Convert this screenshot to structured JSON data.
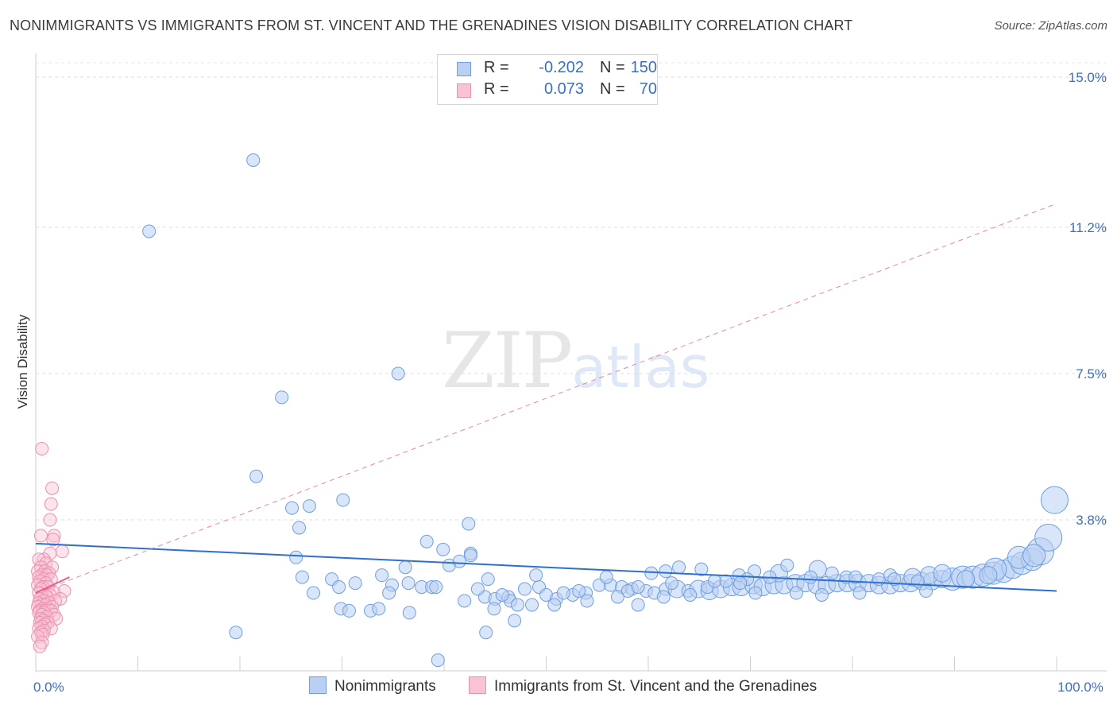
{
  "title": "NONIMMIGRANTS VS IMMIGRANTS FROM ST. VINCENT AND THE GRENADINES VISION DISABILITY CORRELATION CHART",
  "source": "Source: ZipAtlas.com",
  "watermark": {
    "zip": "ZIP",
    "atlas": "atlas"
  },
  "colors": {
    "blue": "#6f9fe0",
    "blue_fill": "#b9d0f2",
    "blue_line": "#2f6fcf",
    "pink": "#ee8fb0",
    "pink_fill": "#f7c3d5",
    "pink_line": "#e35d8a",
    "tick": "#3b6fc4"
  },
  "legend": {
    "rows": [
      {
        "r_label": "R =",
        "r_value": "-0.202",
        "n_label": "N =",
        "n_value": "150"
      },
      {
        "r_label": "R =",
        "r_value": "0.073",
        "n_label": "N =",
        "n_value": "70"
      }
    ]
  },
  "bottom_legend": {
    "nonimmigrants": "Nonimmigrants",
    "immigrants": "Immigrants from St. Vincent and the Grenadines"
  },
  "chart_data": {
    "type": "scatter",
    "xlabel": "",
    "ylabel": "Vision Disability",
    "xlim": [
      0,
      100
    ],
    "ylim": [
      0,
      15
    ],
    "x_tick_labels": [
      {
        "value": 0,
        "label": "0.0%"
      },
      {
        "value": 100,
        "label": "100.0%"
      }
    ],
    "y_tick_labels": [
      {
        "value": 3.8,
        "label": "3.8%"
      },
      {
        "value": 7.5,
        "label": "7.5%"
      },
      {
        "value": 11.2,
        "label": "11.2%"
      },
      {
        "value": 15.0,
        "label": "15.0%"
      }
    ],
    "x_minor_ticks": [
      0,
      10,
      20,
      30,
      40,
      50,
      60,
      70,
      80,
      90,
      100
    ],
    "grid": "horizontal-dashed",
    "series": [
      {
        "name": "Nonimmigrants",
        "trend": {
          "x": [
            0,
            100
          ],
          "y": [
            3.2,
            2.0
          ]
        },
        "points": [
          [
            21.3,
            12.9,
            4
          ],
          [
            11.1,
            11.1,
            4
          ],
          [
            35.5,
            7.5,
            4
          ],
          [
            24.1,
            6.9,
            4
          ],
          [
            21.6,
            4.9,
            4
          ],
          [
            30.1,
            4.3,
            4
          ],
          [
            25.1,
            4.1,
            4
          ],
          [
            26.8,
            4.15,
            4
          ],
          [
            42.4,
            3.7,
            4
          ],
          [
            25.8,
            3.6,
            4
          ],
          [
            38.3,
            3.25,
            4
          ],
          [
            39.9,
            3.05,
            4
          ],
          [
            42.6,
            2.95,
            4
          ],
          [
            25.5,
            2.85,
            4
          ],
          [
            36.2,
            2.6,
            4
          ],
          [
            33.9,
            2.4,
            4
          ],
          [
            44.3,
            2.3,
            4
          ],
          [
            26.1,
            2.35,
            4
          ],
          [
            29.0,
            2.3,
            4
          ],
          [
            31.3,
            2.2,
            4
          ],
          [
            36.5,
            2.2,
            4
          ],
          [
            34.9,
            2.15,
            4
          ],
          [
            37.8,
            2.1,
            4
          ],
          [
            38.8,
            2.1,
            4
          ],
          [
            39.2,
            2.1,
            4
          ],
          [
            27.2,
            1.95,
            4
          ],
          [
            29.7,
            2.1,
            4
          ],
          [
            34.6,
            1.95,
            4
          ],
          [
            44.0,
            1.85,
            4
          ],
          [
            45.0,
            1.8,
            4
          ],
          [
            46.3,
            1.85,
            4
          ],
          [
            47.9,
            2.05,
            4
          ],
          [
            49.3,
            2.1,
            4
          ],
          [
            50.0,
            1.9,
            4
          ],
          [
            51.0,
            1.8,
            4
          ],
          [
            52.6,
            1.9,
            4
          ],
          [
            53.9,
            1.95,
            4
          ],
          [
            55.2,
            2.15,
            4
          ],
          [
            56.3,
            2.15,
            4
          ],
          [
            57.4,
            2.1,
            4
          ],
          [
            58.4,
            2.05,
            4
          ],
          [
            59.8,
            2.0,
            4
          ],
          [
            60.6,
            1.95,
            4
          ],
          [
            61.7,
            2.05,
            4
          ],
          [
            62.8,
            2.05,
            5
          ],
          [
            63.9,
            2.0,
            4
          ],
          [
            64.9,
            2.05,
            5
          ],
          [
            66.0,
            2.0,
            5
          ],
          [
            67.1,
            2.05,
            5
          ],
          [
            68.2,
            2.1,
            5
          ],
          [
            69.1,
            2.1,
            5
          ],
          [
            70.3,
            2.15,
            5
          ],
          [
            71.2,
            2.1,
            5
          ],
          [
            72.3,
            2.15,
            5
          ],
          [
            73.3,
            2.15,
            5
          ],
          [
            74.4,
            2.2,
            5
          ],
          [
            75.4,
            2.2,
            5
          ],
          [
            76.5,
            2.15,
            5
          ],
          [
            77.5,
            2.15,
            5
          ],
          [
            78.5,
            2.2,
            5
          ],
          [
            79.5,
            2.2,
            5
          ],
          [
            80.5,
            2.2,
            5
          ],
          [
            81.6,
            2.2,
            5
          ],
          [
            82.6,
            2.15,
            5
          ],
          [
            83.7,
            2.15,
            5
          ],
          [
            84.7,
            2.2,
            5
          ],
          [
            85.7,
            2.2,
            5
          ],
          [
            86.8,
            2.25,
            5
          ],
          [
            87.8,
            2.25,
            5
          ],
          [
            88.8,
            2.3,
            5
          ],
          [
            89.8,
            2.3,
            6
          ],
          [
            90.8,
            2.35,
            6
          ],
          [
            91.8,
            2.35,
            6
          ],
          [
            92.8,
            2.4,
            6
          ],
          [
            93.8,
            2.45,
            6
          ],
          [
            94.8,
            2.5,
            6
          ],
          [
            95.7,
            2.6,
            6
          ],
          [
            96.6,
            2.7,
            6
          ],
          [
            97.6,
            2.8,
            6
          ],
          [
            98.4,
            3.0,
            7
          ],
          [
            99.2,
            3.35,
            7
          ],
          [
            99.8,
            4.3,
            7
          ],
          [
            49.0,
            2.4,
            4
          ],
          [
            55.9,
            2.35,
            4
          ],
          [
            60.3,
            2.45,
            4
          ],
          [
            61.7,
            2.5,
            4
          ],
          [
            63.0,
            2.6,
            4
          ],
          [
            65.2,
            2.55,
            4
          ],
          [
            68.9,
            2.4,
            4
          ],
          [
            70.4,
            2.5,
            4
          ],
          [
            72.8,
            2.45,
            5
          ],
          [
            73.6,
            2.65,
            4
          ],
          [
            76.6,
            2.55,
            5
          ],
          [
            78.0,
            2.45,
            4
          ],
          [
            82.6,
            2.3,
            4
          ],
          [
            85.9,
            2.35,
            5
          ],
          [
            87.5,
            2.4,
            5
          ],
          [
            40.5,
            2.65,
            4
          ],
          [
            41.5,
            2.75,
            4
          ],
          [
            42.6,
            2.9,
            4
          ],
          [
            51.7,
            1.95,
            4
          ],
          [
            53.2,
            2.0,
            4
          ],
          [
            57.0,
            1.85,
            4
          ],
          [
            61.5,
            1.85,
            4
          ],
          [
            64.1,
            1.9,
            4
          ],
          [
            65.8,
            2.1,
            4
          ],
          [
            70.5,
            1.95,
            4
          ],
          [
            74.5,
            1.95,
            4
          ],
          [
            77.0,
            1.9,
            4
          ],
          [
            80.7,
            1.95,
            4
          ],
          [
            87.2,
            2.0,
            4
          ],
          [
            50.8,
            1.65,
            4
          ],
          [
            48.6,
            1.65,
            4
          ],
          [
            46.5,
            1.75,
            4
          ],
          [
            44.9,
            1.55,
            4
          ],
          [
            42.0,
            1.75,
            4
          ],
          [
            47.2,
            1.65,
            4
          ],
          [
            54.0,
            1.75,
            4
          ],
          [
            59.0,
            1.65,
            4
          ],
          [
            43.3,
            2.05,
            4
          ],
          [
            45.7,
            1.9,
            4
          ],
          [
            29.9,
            1.55,
            4
          ],
          [
            30.7,
            1.5,
            4
          ],
          [
            32.8,
            1.5,
            4
          ],
          [
            33.6,
            1.55,
            4
          ],
          [
            36.6,
            1.45,
            4
          ],
          [
            46.9,
            1.25,
            4
          ],
          [
            44.1,
            0.95,
            4
          ],
          [
            39.4,
            0.25,
            4
          ],
          [
            19.6,
            0.95,
            4
          ],
          [
            58.0,
            2.0,
            4
          ],
          [
            59.0,
            2.1,
            4
          ],
          [
            67.6,
            2.25,
            4
          ],
          [
            69.7,
            2.3,
            4
          ],
          [
            71.9,
            2.35,
            4
          ],
          [
            75.9,
            2.35,
            4
          ],
          [
            79.4,
            2.35,
            4
          ],
          [
            83.7,
            2.4,
            4
          ],
          [
            88.8,
            2.45,
            5
          ],
          [
            94.0,
            2.55,
            6
          ],
          [
            96.3,
            2.85,
            6
          ],
          [
            97.8,
            2.9,
            6
          ],
          [
            62.3,
            2.2,
            4
          ],
          [
            66.5,
            2.25,
            4
          ],
          [
            69.0,
            2.2,
            4
          ],
          [
            80.3,
            2.35,
            4
          ],
          [
            84.1,
            2.3,
            4
          ],
          [
            86.4,
            2.25,
            4
          ],
          [
            91.1,
            2.3,
            5
          ],
          [
            93.3,
            2.4,
            5
          ]
        ]
      },
      {
        "name": "Immigrants from St. Vincent and the Grenadines",
        "trend": {
          "x": [
            0,
            3.3
          ],
          "y": [
            1.95,
            2.35
          ]
        },
        "trend_extended": {
          "x": [
            0,
            100
          ],
          "y": [
            1.95,
            11.8
          ]
        },
        "points": [
          [
            0.6,
            5.6
          ],
          [
            1.6,
            4.6
          ],
          [
            1.5,
            4.2
          ],
          [
            1.4,
            3.8
          ],
          [
            0.5,
            3.4
          ],
          [
            1.8,
            3.4
          ],
          [
            1.7,
            3.3
          ],
          [
            2.6,
            3.0
          ],
          [
            1.4,
            2.95
          ],
          [
            0.8,
            2.8
          ],
          [
            0.3,
            2.8
          ],
          [
            1.0,
            2.7
          ],
          [
            1.6,
            2.6
          ],
          [
            0.5,
            2.6
          ],
          [
            0.2,
            2.5
          ],
          [
            0.9,
            2.5
          ],
          [
            1.3,
            2.45
          ],
          [
            0.6,
            2.4
          ],
          [
            1.1,
            2.4
          ],
          [
            0.3,
            2.35
          ],
          [
            0.8,
            2.3
          ],
          [
            1.5,
            2.3
          ],
          [
            0.4,
            2.25
          ],
          [
            1.0,
            2.2
          ],
          [
            0.2,
            2.15
          ],
          [
            0.7,
            2.1
          ],
          [
            1.2,
            2.1
          ],
          [
            0.5,
            2.05
          ],
          [
            2.8,
            2.0
          ],
          [
            1.8,
            1.95
          ],
          [
            0.3,
            1.95
          ],
          [
            0.9,
            1.9
          ],
          [
            1.4,
            1.9
          ],
          [
            0.6,
            1.85
          ],
          [
            1.1,
            1.85
          ],
          [
            2.4,
            1.8
          ],
          [
            0.4,
            1.8
          ],
          [
            0.8,
            1.75
          ],
          [
            1.9,
            1.75
          ],
          [
            0.3,
            1.7
          ],
          [
            1.3,
            1.7
          ],
          [
            0.6,
            1.65
          ],
          [
            1.0,
            1.65
          ],
          [
            0.2,
            1.6
          ],
          [
            1.6,
            1.6
          ],
          [
            0.7,
            1.55
          ],
          [
            1.2,
            1.55
          ],
          [
            0.4,
            1.5
          ],
          [
            0.9,
            1.5
          ],
          [
            1.5,
            1.5
          ],
          [
            0.3,
            1.45
          ],
          [
            0.8,
            1.45
          ],
          [
            1.8,
            1.4
          ],
          [
            0.6,
            1.4
          ],
          [
            1.1,
            1.35
          ],
          [
            0.5,
            1.3
          ],
          [
            2.0,
            1.3
          ],
          [
            0.7,
            1.25
          ],
          [
            0.4,
            1.2
          ],
          [
            1.2,
            1.2
          ],
          [
            0.9,
            1.15
          ],
          [
            0.6,
            1.1
          ],
          [
            0.3,
            1.05
          ],
          [
            1.5,
            1.05
          ],
          [
            0.8,
            1.0
          ],
          [
            0.5,
            0.95
          ],
          [
            0.7,
            0.9
          ],
          [
            0.2,
            0.85
          ],
          [
            0.6,
            0.7
          ],
          [
            0.4,
            0.6
          ]
        ]
      }
    ]
  }
}
